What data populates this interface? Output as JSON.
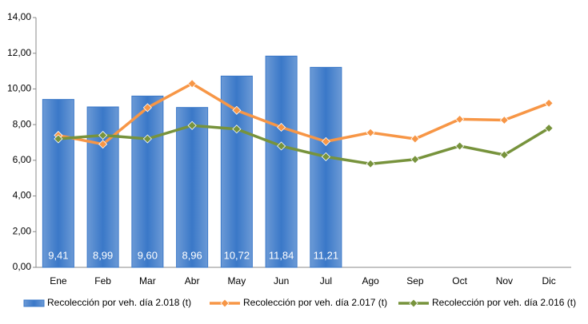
{
  "chart_data": {
    "type": "bar",
    "categories": [
      "Ene",
      "Feb",
      "Mar",
      "Abr",
      "May",
      "Jun",
      "Jul",
      "Ago",
      "Sep",
      "Oct",
      "Nov",
      "Dic"
    ],
    "series": [
      {
        "name": "Recolección por veh. día 2.018 (t)",
        "type": "bar",
        "color": "#3a78c8",
        "values": [
          9.41,
          8.99,
          9.6,
          8.96,
          10.72,
          11.84,
          11.21,
          null,
          null,
          null,
          null,
          null
        ],
        "value_labels": [
          "9,41",
          "8,99",
          "9,60",
          "8,96",
          "10,72",
          "11,84",
          "11,21",
          null,
          null,
          null,
          null,
          null
        ]
      },
      {
        "name": "Recolección por veh. día 2.017 (t)",
        "type": "line",
        "color": "#f79646",
        "values": [
          7.4,
          6.9,
          8.95,
          10.3,
          8.8,
          7.85,
          7.05,
          7.55,
          7.2,
          8.3,
          8.25,
          9.2
        ]
      },
      {
        "name": "Recolección por veh. día 2.016 (t)",
        "type": "line",
        "color": "#77933c",
        "values": [
          7.2,
          7.4,
          7.2,
          7.95,
          7.75,
          6.8,
          6.2,
          5.8,
          6.05,
          6.8,
          6.3,
          7.8
        ]
      }
    ],
    "ylim": [
      0,
      14
    ],
    "yticks": [
      {
        "value": 0,
        "label": "0,00"
      },
      {
        "value": 2,
        "label": "2,00"
      },
      {
        "value": 4,
        "label": "4,00"
      },
      {
        "value": 6,
        "label": "6,00"
      },
      {
        "value": 8,
        "label": "8,00"
      },
      {
        "value": 10,
        "label": "10,00"
      },
      {
        "value": 12,
        "label": "12,00"
      },
      {
        "value": 14,
        "label": "14,00"
      }
    ],
    "grid": false,
    "legend": "bottom"
  }
}
